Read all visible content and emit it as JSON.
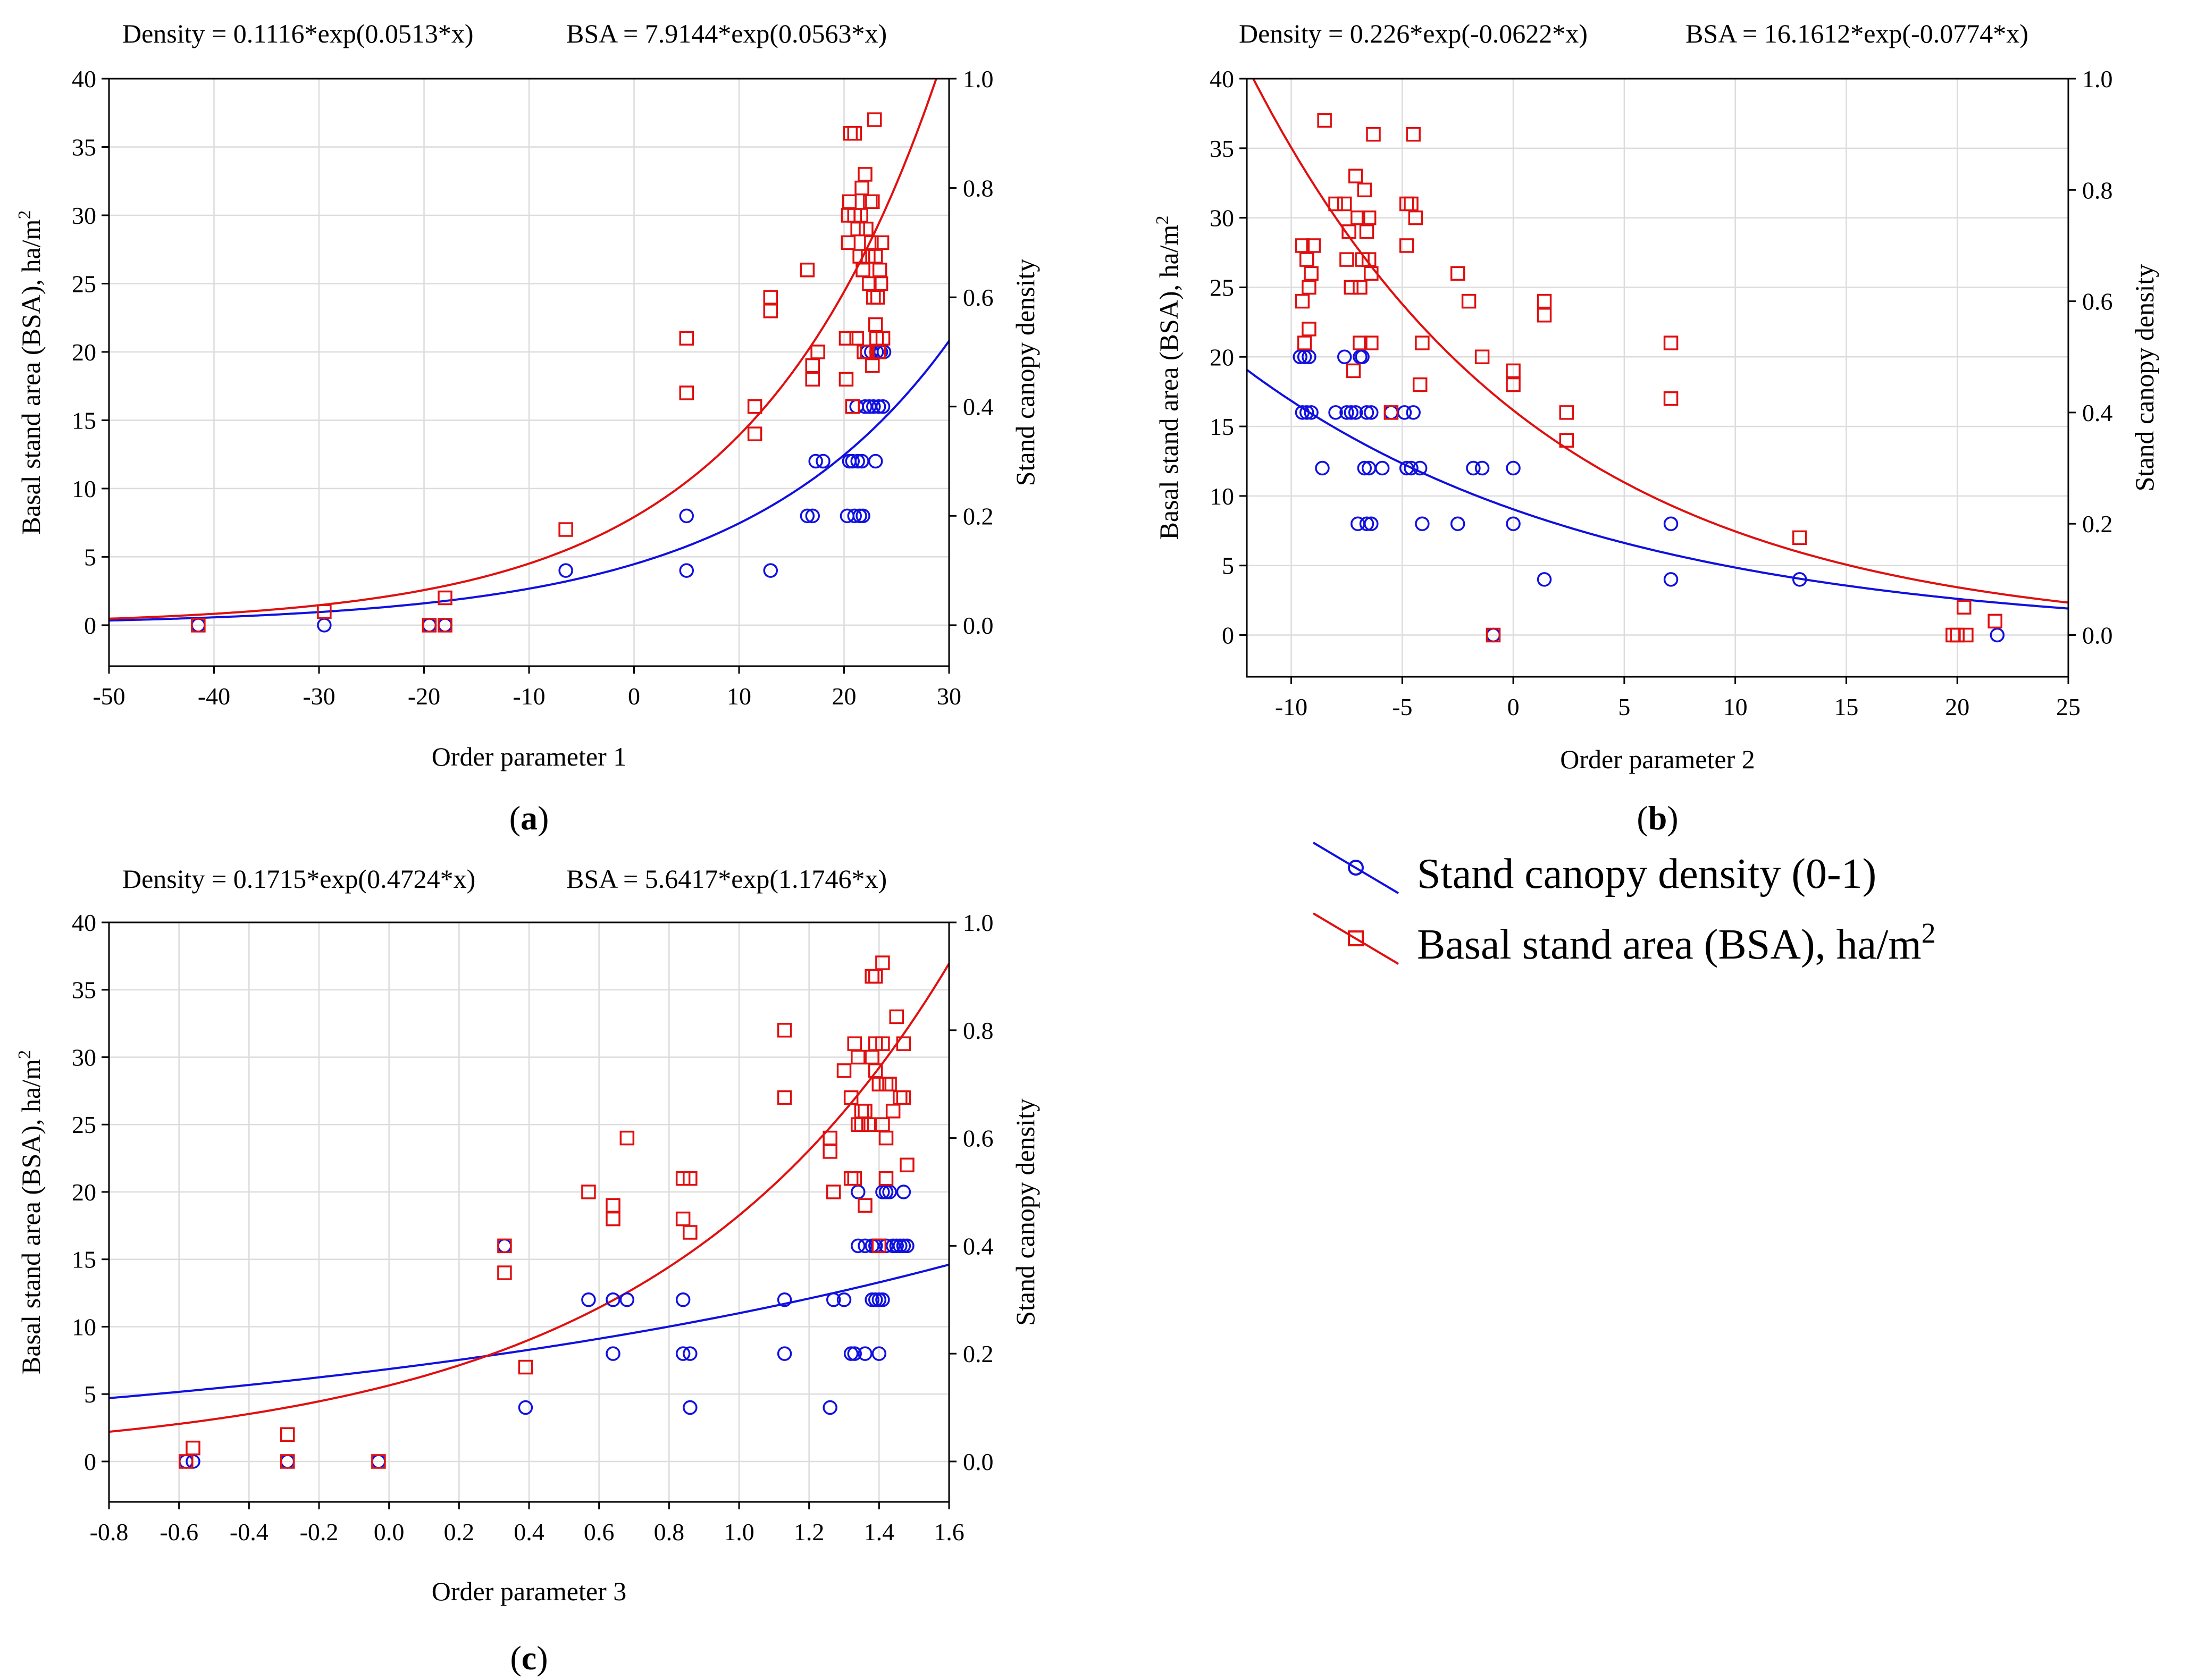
{
  "colors": {
    "density": "#1010e0",
    "bsa": "#e01010",
    "grid": "#dcdcdc"
  },
  "legend": {
    "density_label": "Stand canopy density (0-1)",
    "bsa_label_main": "Basal stand area (BSA), ha/m",
    "bsa_label_sup": "2"
  },
  "chart_data": [
    {
      "id": "a",
      "type": "scatter",
      "panel_label": "a",
      "equation_density": "Density = 0.1116*exp(0.0513*x)",
      "equation_bsa": "BSA = 7.9144*exp(0.0563*x)",
      "xlabel": "Order parameter 1",
      "ylabel_left_main": "Basal stand area (BSA), ha/m",
      "ylabel_left_sup": "2",
      "ylabel_right": "Stand canopy density",
      "xlim": [
        -50,
        30
      ],
      "ylim_left": [
        -3,
        40
      ],
      "ylim_right": [
        -0.075,
        1.0
      ],
      "xticks": [
        "-50",
        "-40",
        "-30",
        "-20",
        "-10",
        "0",
        "10",
        "20",
        "30"
      ],
      "xtick_values": [
        -50,
        -40,
        -30,
        -20,
        -10,
        0,
        10,
        20,
        30
      ],
      "yticks_left": [
        "0",
        "5",
        "10",
        "15",
        "20",
        "25",
        "30",
        "35",
        "40"
      ],
      "ytick_left_values": [
        0,
        5,
        10,
        15,
        20,
        25,
        30,
        35,
        40
      ],
      "yticks_right": [
        "0.0",
        "0.2",
        "0.4",
        "0.6",
        "0.8",
        "1.0"
      ],
      "ytick_right_values": [
        0,
        0.2,
        0.4,
        0.6,
        0.8,
        1.0
      ],
      "fit_density": {
        "a": 0.1116,
        "b": 0.0513
      },
      "fit_bsa": {
        "a": 7.9144,
        "b": 0.0563
      },
      "bsa_points": [
        [
          -41.5,
          0
        ],
        [
          -29.5,
          1
        ],
        [
          -19.5,
          0
        ],
        [
          -18,
          0
        ],
        [
          -18,
          2
        ],
        [
          -6.5,
          7
        ],
        [
          5,
          17
        ],
        [
          5,
          21
        ],
        [
          11.5,
          14
        ],
        [
          11.5,
          16
        ],
        [
          13,
          23
        ],
        [
          13,
          24
        ],
        [
          16.5,
          26
        ],
        [
          17,
          18
        ],
        [
          17,
          19
        ],
        [
          17.5,
          20
        ],
        [
          20.2,
          18
        ],
        [
          20.2,
          21
        ],
        [
          20.4,
          28
        ],
        [
          20.4,
          30
        ],
        [
          20.5,
          31
        ],
        [
          20.6,
          36
        ],
        [
          20.8,
          16
        ],
        [
          21,
          30
        ],
        [
          21,
          36
        ],
        [
          21.2,
          21
        ],
        [
          21.3,
          29
        ],
        [
          21.5,
          27
        ],
        [
          21.6,
          30
        ],
        [
          21.7,
          32
        ],
        [
          21.8,
          26
        ],
        [
          21.9,
          20
        ],
        [
          22,
          33
        ],
        [
          22.1,
          29
        ],
        [
          22.2,
          20
        ],
        [
          22.3,
          27
        ],
        [
          22.4,
          25
        ],
        [
          22.5,
          31
        ],
        [
          22.6,
          28
        ],
        [
          22.7,
          19
        ],
        [
          22.8,
          24
        ],
        [
          22.9,
          37
        ],
        [
          23,
          27
        ],
        [
          23,
          22
        ],
        [
          23.1,
          21
        ],
        [
          23.2,
          24
        ],
        [
          23.3,
          20
        ],
        [
          23.4,
          26
        ],
        [
          23.5,
          25
        ],
        [
          23.6,
          28
        ],
        [
          23.7,
          21
        ],
        [
          22.7,
          31
        ]
      ],
      "density_points": [
        [
          -41.5,
          0.0
        ],
        [
          -29.5,
          0.0
        ],
        [
          -19.5,
          0.0
        ],
        [
          -18,
          0.0
        ],
        [
          -6.5,
          0.1
        ],
        [
          5,
          0.1
        ],
        [
          5,
          0.2
        ],
        [
          13,
          0.1
        ],
        [
          16.5,
          0.2
        ],
        [
          17,
          0.2
        ],
        [
          17.3,
          0.3
        ],
        [
          18,
          0.3
        ],
        [
          20.3,
          0.2
        ],
        [
          20.5,
          0.3
        ],
        [
          20.8,
          0.3
        ],
        [
          21,
          0.2
        ],
        [
          21.2,
          0.4
        ],
        [
          21.3,
          0.3
        ],
        [
          21.5,
          0.2
        ],
        [
          21.7,
          0.3
        ],
        [
          21.8,
          0.2
        ],
        [
          22,
          0.4
        ],
        [
          22.2,
          0.5
        ],
        [
          22.4,
          0.4
        ],
        [
          22.6,
          0.5
        ],
        [
          22.8,
          0.4
        ],
        [
          23,
          0.3
        ],
        [
          23.1,
          0.5
        ],
        [
          23.3,
          0.4
        ],
        [
          23.5,
          0.5
        ],
        [
          23.7,
          0.4
        ],
        [
          23.8,
          0.5
        ]
      ]
    },
    {
      "id": "b",
      "type": "scatter",
      "panel_label": "b",
      "equation_density": "Density = 0.226*exp(-0.0622*x)",
      "equation_bsa": "BSA = 16.1612*exp(-0.0774*x)",
      "xlabel": "Order parameter 2",
      "ylabel_left_main": "Basal stand area (BSA), ha/m",
      "ylabel_left_sup": "2",
      "ylabel_right": "Stand canopy density",
      "xlim": [
        -12,
        25
      ],
      "ylim_left": [
        -3,
        40
      ],
      "ylim_right": [
        -0.075,
        1.0
      ],
      "xticks": [
        "-10",
        "-5",
        "0",
        "5",
        "10",
        "15",
        "20",
        "25"
      ],
      "xtick_values": [
        -10,
        -5,
        0,
        5,
        10,
        15,
        20,
        25
      ],
      "yticks_left": [
        "0",
        "5",
        "10",
        "15",
        "20",
        "25",
        "30",
        "35",
        "40"
      ],
      "ytick_left_values": [
        0,
        5,
        10,
        15,
        20,
        25,
        30,
        35,
        40
      ],
      "yticks_right": [
        "0.0",
        "0.2",
        "0.4",
        "0.6",
        "0.8",
        "1.0"
      ],
      "ytick_right_values": [
        0,
        0.2,
        0.4,
        0.6,
        0.8,
        1.0
      ],
      "fit_density": {
        "a": 0.226,
        "b": -0.0622
      },
      "fit_bsa": {
        "a": 16.1612,
        "b": -0.0774
      },
      "bsa_points": [
        [
          -9.5,
          28
        ],
        [
          -9.5,
          24
        ],
        [
          -9.4,
          21
        ],
        [
          -9.3,
          27
        ],
        [
          -9.2,
          22
        ],
        [
          -9.2,
          25
        ],
        [
          -9.1,
          26
        ],
        [
          -9,
          28
        ],
        [
          -8.5,
          37
        ],
        [
          -8,
          31
        ],
        [
          -7.6,
          31
        ],
        [
          -7.5,
          27
        ],
        [
          -7.4,
          29
        ],
        [
          -7.3,
          25
        ],
        [
          -7.2,
          19
        ],
        [
          -7.1,
          33
        ],
        [
          -7,
          30
        ],
        [
          -6.9,
          25
        ],
        [
          -6.9,
          21
        ],
        [
          -6.8,
          27
        ],
        [
          -6.7,
          32
        ],
        [
          -6.6,
          29
        ],
        [
          -6.5,
          30
        ],
        [
          -6.5,
          27
        ],
        [
          -6.4,
          21
        ],
        [
          -6.4,
          26
        ],
        [
          -6.3,
          36
        ],
        [
          -5.5,
          16
        ],
        [
          -4.8,
          31
        ],
        [
          -4.8,
          28
        ],
        [
          -4.6,
          31
        ],
        [
          -4.5,
          36
        ],
        [
          -4.4,
          30
        ],
        [
          -4.2,
          18
        ],
        [
          -4.1,
          21
        ],
        [
          -2.5,
          26
        ],
        [
          -2,
          24
        ],
        [
          -1.4,
          20
        ],
        [
          -0.9,
          0
        ],
        [
          0,
          19
        ],
        [
          0,
          18
        ],
        [
          1.4,
          23
        ],
        [
          1.4,
          24
        ],
        [
          2.4,
          16
        ],
        [
          2.4,
          14
        ],
        [
          7.1,
          17
        ],
        [
          7.1,
          21
        ],
        [
          12.9,
          7
        ],
        [
          19.8,
          0
        ],
        [
          20,
          0
        ],
        [
          20.3,
          2
        ],
        [
          20.4,
          0
        ],
        [
          21.7,
          1
        ]
      ],
      "density_points": [
        [
          -9.6,
          0.5
        ],
        [
          -9.5,
          0.4
        ],
        [
          -9.4,
          0.5
        ],
        [
          -9.3,
          0.4
        ],
        [
          -9.2,
          0.5
        ],
        [
          -9.1,
          0.4
        ],
        [
          -8.6,
          0.3
        ],
        [
          -8,
          0.4
        ],
        [
          -7.6,
          0.5
        ],
        [
          -7.5,
          0.4
        ],
        [
          -7.3,
          0.4
        ],
        [
          -7.1,
          0.4
        ],
        [
          -7,
          0.2
        ],
        [
          -6.9,
          0.5
        ],
        [
          -6.8,
          0.5
        ],
        [
          -6.7,
          0.3
        ],
        [
          -6.6,
          0.4
        ],
        [
          -6.6,
          0.2
        ],
        [
          -6.5,
          0.3
        ],
        [
          -6.4,
          0.2
        ],
        [
          -6.4,
          0.4
        ],
        [
          -5.9,
          0.3
        ],
        [
          -5.5,
          0.4
        ],
        [
          -4.9,
          0.4
        ],
        [
          -4.8,
          0.3
        ],
        [
          -4.6,
          0.3
        ],
        [
          -4.5,
          0.4
        ],
        [
          -4.2,
          0.3
        ],
        [
          -4.1,
          0.2
        ],
        [
          -2.5,
          0.2
        ],
        [
          -1.8,
          0.3
        ],
        [
          -1.4,
          0.3
        ],
        [
          -0.9,
          0.0
        ],
        [
          0,
          0.3
        ],
        [
          0,
          0.2
        ],
        [
          1.4,
          0.1
        ],
        [
          7.1,
          0.2
        ],
        [
          7.1,
          0.1
        ],
        [
          12.9,
          0.1
        ],
        [
          21.8,
          0.0
        ]
      ]
    },
    {
      "id": "c",
      "type": "scatter",
      "panel_label": "c",
      "equation_density": "Density = 0.1715*exp(0.4724*x)",
      "equation_bsa": "BSA = 5.6417*exp(1.1746*x)",
      "xlabel": "Order parameter 3",
      "ylabel_left_main": "Basal stand area (BSA), ha/m",
      "ylabel_left_sup": "2",
      "ylabel_right": "Stand canopy density",
      "xlim": [
        -0.8,
        1.6
      ],
      "ylim_left": [
        -3,
        40
      ],
      "ylim_right": [
        -0.075,
        1.0
      ],
      "xticks": [
        "-0.8",
        "-0.6",
        "-0.4",
        "-0.2",
        "0.0",
        "0.2",
        "0.4",
        "0.6",
        "0.8",
        "1.0",
        "1.2",
        "1.4",
        "1.6"
      ],
      "xtick_values": [
        -0.8,
        -0.6,
        -0.4,
        -0.2,
        0,
        0.2,
        0.4,
        0.6,
        0.8,
        1.0,
        1.2,
        1.4,
        1.6
      ],
      "yticks_left": [
        "0",
        "5",
        "10",
        "15",
        "20",
        "25",
        "30",
        "35",
        "40"
      ],
      "ytick_left_values": [
        0,
        5,
        10,
        15,
        20,
        25,
        30,
        35,
        40
      ],
      "yticks_right": [
        "0.0",
        "0.2",
        "0.4",
        "0.6",
        "0.8",
        "1.0"
      ],
      "ytick_right_values": [
        0,
        0.2,
        0.4,
        0.6,
        0.8,
        1.0
      ],
      "fit_density": {
        "a": 0.1715,
        "b": 0.4724
      },
      "fit_bsa": {
        "a": 5.6417,
        "b": 1.1746
      },
      "bsa_points": [
        [
          -0.58,
          0
        ],
        [
          -0.56,
          1
        ],
        [
          -0.29,
          2
        ],
        [
          -0.29,
          0
        ],
        [
          -0.03,
          0
        ],
        [
          0.33,
          16
        ],
        [
          0.33,
          14
        ],
        [
          0.39,
          7
        ],
        [
          0.57,
          20
        ],
        [
          0.64,
          19
        ],
        [
          0.64,
          18
        ],
        [
          0.68,
          24
        ],
        [
          0.84,
          21
        ],
        [
          0.84,
          18
        ],
        [
          0.86,
          21
        ],
        [
          0.86,
          17
        ],
        [
          1.13,
          32
        ],
        [
          1.13,
          27
        ],
        [
          1.26,
          24
        ],
        [
          1.26,
          23
        ],
        [
          1.27,
          20
        ],
        [
          1.3,
          29
        ],
        [
          1.32,
          27
        ],
        [
          1.32,
          21
        ],
        [
          1.33,
          31
        ],
        [
          1.33,
          21
        ],
        [
          1.34,
          25
        ],
        [
          1.34,
          30
        ],
        [
          1.35,
          26
        ],
        [
          1.35,
          25
        ],
        [
          1.36,
          19
        ],
        [
          1.36,
          26
        ],
        [
          1.37,
          25
        ],
        [
          1.38,
          36
        ],
        [
          1.38,
          30
        ],
        [
          1.39,
          36
        ],
        [
          1.39,
          31
        ],
        [
          1.39,
          29
        ],
        [
          1.4,
          28
        ],
        [
          1.4,
          16
        ],
        [
          1.41,
          37
        ],
        [
          1.41,
          31
        ],
        [
          1.41,
          25
        ],
        [
          1.42,
          28
        ],
        [
          1.42,
          21
        ],
        [
          1.42,
          24
        ],
        [
          1.43,
          28
        ],
        [
          1.44,
          26
        ],
        [
          1.45,
          33
        ],
        [
          1.46,
          27
        ],
        [
          1.47,
          31
        ],
        [
          1.47,
          27
        ],
        [
          1.48,
          22
        ]
      ],
      "density_points": [
        [
          -0.58,
          0.0
        ],
        [
          -0.56,
          0.0
        ],
        [
          -0.29,
          0.0
        ],
        [
          -0.03,
          0.0
        ],
        [
          0.33,
          0.4
        ],
        [
          0.39,
          0.1
        ],
        [
          0.57,
          0.3
        ],
        [
          0.64,
          0.3
        ],
        [
          0.64,
          0.2
        ],
        [
          0.68,
          0.3
        ],
        [
          0.84,
          0.3
        ],
        [
          0.84,
          0.2
        ],
        [
          0.86,
          0.2
        ],
        [
          0.86,
          0.1
        ],
        [
          1.13,
          0.3
        ],
        [
          1.13,
          0.2
        ],
        [
          1.26,
          0.1
        ],
        [
          1.27,
          0.3
        ],
        [
          1.3,
          0.3
        ],
        [
          1.32,
          0.2
        ],
        [
          1.33,
          0.2
        ],
        [
          1.34,
          0.5
        ],
        [
          1.34,
          0.4
        ],
        [
          1.36,
          0.4
        ],
        [
          1.36,
          0.2
        ],
        [
          1.38,
          0.4
        ],
        [
          1.38,
          0.3
        ],
        [
          1.39,
          0.4
        ],
        [
          1.39,
          0.3
        ],
        [
          1.4,
          0.2
        ],
        [
          1.4,
          0.3
        ],
        [
          1.41,
          0.5
        ],
        [
          1.41,
          0.3
        ],
        [
          1.42,
          0.5
        ],
        [
          1.42,
          0.4
        ],
        [
          1.43,
          0.5
        ],
        [
          1.44,
          0.4
        ],
        [
          1.45,
          0.4
        ],
        [
          1.46,
          0.4
        ],
        [
          1.47,
          0.5
        ],
        [
          1.47,
          0.4
        ],
        [
          1.48,
          0.4
        ]
      ]
    }
  ]
}
